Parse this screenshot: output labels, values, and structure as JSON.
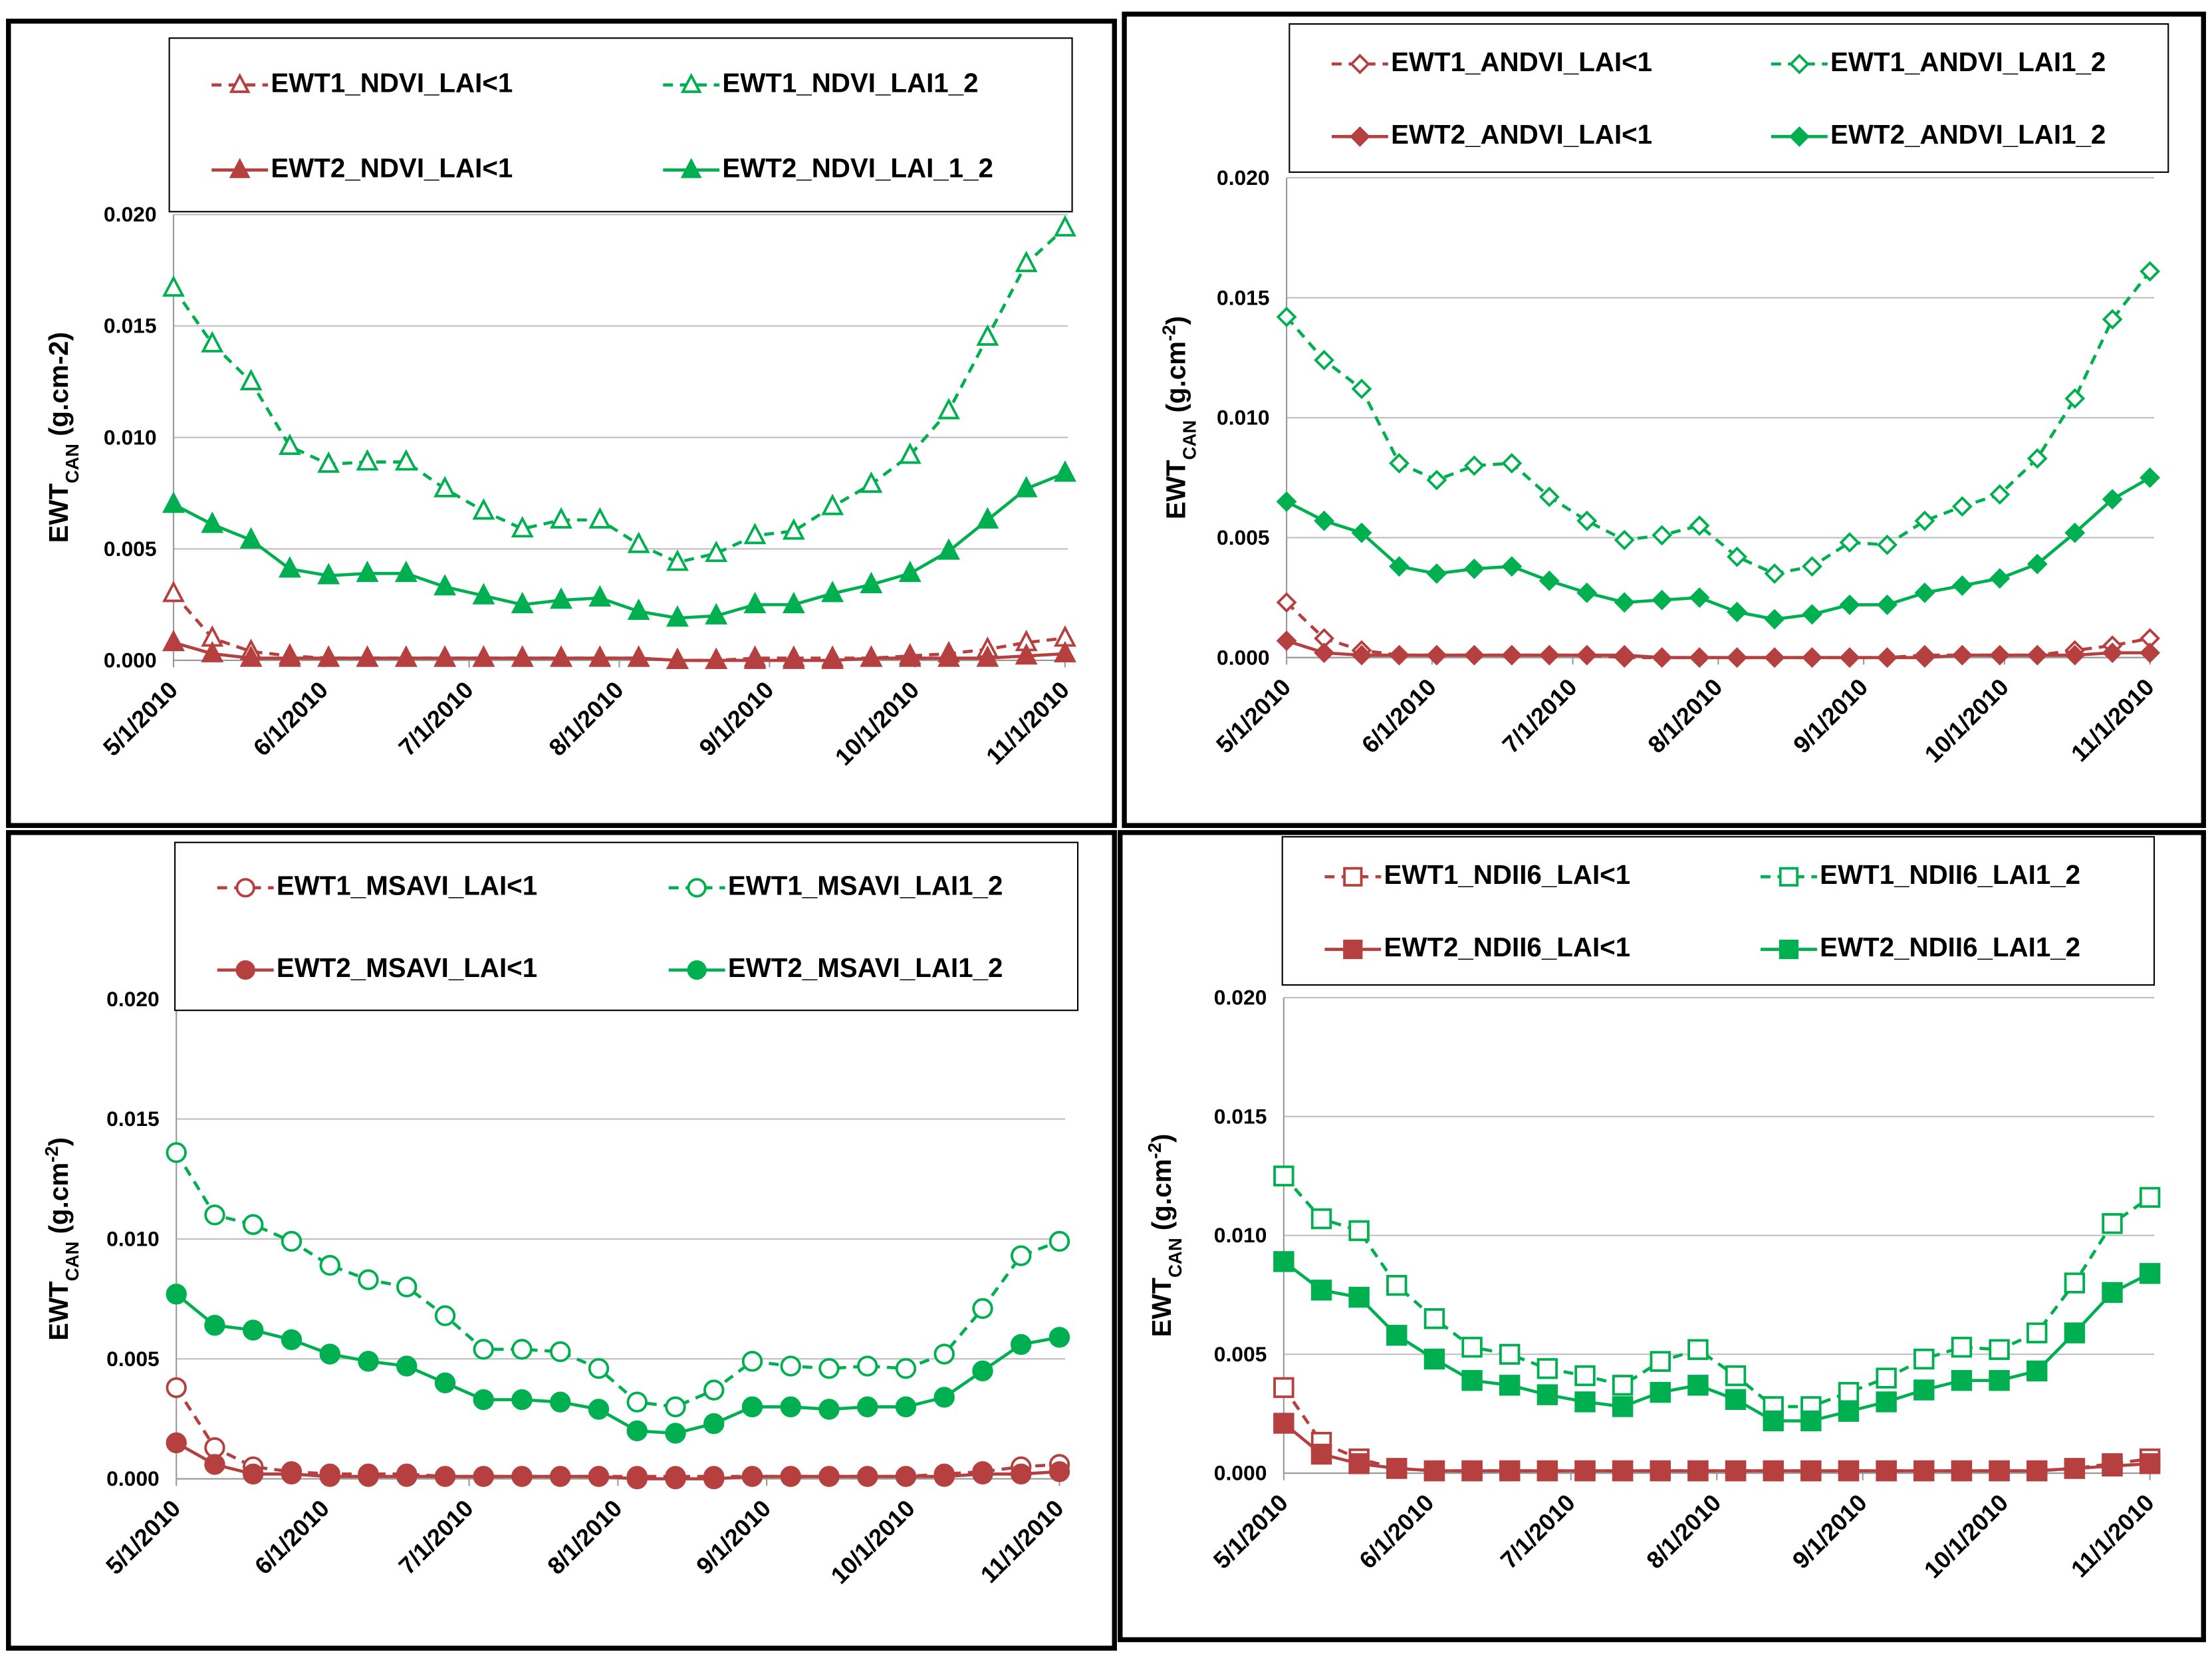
{
  "chart_data": [
    {
      "type": "line",
      "ylabel_parts": [
        "EWT",
        "CAN",
        " (g.cm-2)"
      ],
      "x": [
        "5/1/2010",
        "5/9/2010",
        "5/17/2010",
        "5/25/2010",
        "6/2/2010",
        "6/10/2010",
        "6/18/2010",
        "6/26/2010",
        "7/4/2010",
        "7/12/2010",
        "7/20/2010",
        "7/28/2010",
        "8/5/2010",
        "8/13/2010",
        "8/21/2010",
        "8/29/2010",
        "9/6/2010",
        "9/14/2010",
        "9/22/2010",
        "9/30/2010",
        "10/8/2010",
        "10/16/2010",
        "10/24/2010",
        "11/1/2010"
      ],
      "xlim": [
        "5/1/2010",
        "11/1/2010"
      ],
      "xticks": [
        "5/1/2010",
        "6/1/2010",
        "7/1/2010",
        "8/1/2010",
        "9/1/2010",
        "10/1/2010",
        "11/1/2010"
      ],
      "ylim": [
        0,
        0.02
      ],
      "yticks": [
        {
          "value": 0,
          "label": "0.000"
        },
        {
          "value": 0.005,
          "label": "0.005"
        },
        {
          "value": 0.01,
          "label": "0.010"
        },
        {
          "value": 0.015,
          "label": "0.015"
        },
        {
          "value": 0.02,
          "label": "0.020"
        }
      ],
      "grid": true,
      "series": [
        {
          "name": "EWT1_NDVI_LAI<1",
          "color": "#b5403f",
          "marker": "triangle",
          "filled": false,
          "dashed": true,
          "values": [
            0.003,
            0.001,
            0.0004,
            0.0002,
            0.0001,
            0.0001,
            0.0001,
            0.0001,
            0.0001,
            0.0001,
            0.0001,
            0.0001,
            0.0001,
            0,
            0,
            0.0001,
            0.0001,
            0.0001,
            0.0001,
            0.0002,
            0.0003,
            0.0005,
            0.0008,
            0.001
          ]
        },
        {
          "name": "EWT1_NDVI_LAI1_2",
          "color": "#00b050",
          "marker": "triangle",
          "filled": false,
          "dashed": true,
          "values": [
            0.0167,
            0.0142,
            0.0125,
            0.0096,
            0.0088,
            0.0089,
            0.0089,
            0.0077,
            0.0067,
            0.0059,
            0.0063,
            0.0063,
            0.0052,
            0.0044,
            0.0048,
            0.0056,
            0.0058,
            0.0069,
            0.0079,
            0.0092,
            0.0112,
            0.0145,
            0.0178,
            0.0194
          ]
        },
        {
          "name": "EWT2_NDVI_LAI<1",
          "color": "#b5403f",
          "marker": "triangle",
          "filled": true,
          "dashed": false,
          "values": [
            0.0008,
            0.0003,
            0.0001,
            0.0001,
            0.0001,
            0.0001,
            0.0001,
            0.0001,
            0.0001,
            0.0001,
            0.0001,
            0.0001,
            0.0001,
            0,
            0,
            0,
            0,
            0,
            0.0001,
            0.0001,
            0.0001,
            0.0001,
            0.0002,
            0.0003
          ]
        },
        {
          "name": "EWT2_NDVI_LAI_1_2",
          "color": "#00b050",
          "marker": "triangle",
          "filled": true,
          "dashed": false,
          "values": [
            0.007,
            0.0061,
            0.0054,
            0.0041,
            0.0038,
            0.0039,
            0.0039,
            0.0033,
            0.0029,
            0.0025,
            0.0027,
            0.0028,
            0.0022,
            0.0019,
            0.002,
            0.0025,
            0.0025,
            0.003,
            0.0034,
            0.0039,
            0.0049,
            0.0063,
            0.0077,
            0.0084
          ]
        }
      ]
    },
    {
      "type": "line",
      "ylabel_parts": [
        "EWT",
        "CAN",
        " (g.cm",
        "-2",
        ")"
      ],
      "x": [
        "5/1/2010",
        "5/9/2010",
        "5/17/2010",
        "5/25/2010",
        "6/2/2010",
        "6/10/2010",
        "6/18/2010",
        "6/26/2010",
        "7/4/2010",
        "7/12/2010",
        "7/20/2010",
        "7/28/2010",
        "8/5/2010",
        "8/13/2010",
        "8/21/2010",
        "8/29/2010",
        "9/6/2010",
        "9/14/2010",
        "9/22/2010",
        "9/30/2010",
        "10/8/2010",
        "10/16/2010",
        "10/24/2010",
        "11/1/2010"
      ],
      "xlim": [
        "5/1/2010",
        "11/1/2010"
      ],
      "xticks": [
        "5/1/2010",
        "6/1/2010",
        "7/1/2010",
        "8/1/2010",
        "9/1/2010",
        "10/1/2010",
        "11/1/2010"
      ],
      "ylim": [
        0,
        0.02
      ],
      "yticks": [
        {
          "value": 0,
          "label": "0.000"
        },
        {
          "value": 0.005,
          "label": "0.005"
        },
        {
          "value": 0.01,
          "label": "0.010"
        },
        {
          "value": 0.015,
          "label": "0.015"
        },
        {
          "value": 0.02,
          "label": "0.020"
        }
      ],
      "grid": true,
      "series": [
        {
          "name": "EWT1_ANDVI_LAI<1",
          "color": "#b5403f",
          "marker": "diamond",
          "filled": false,
          "dashed": true,
          "values": [
            0.0023,
            0.0008,
            0.0003,
            0.0001,
            0.0001,
            0.0001,
            0.0001,
            0.0001,
            0.0001,
            0,
            0,
            0,
            0,
            0,
            0,
            0,
            0,
            0.0001,
            0.0001,
            0.0001,
            0.0001,
            0.0003,
            0.0005,
            0.0008
          ]
        },
        {
          "name": "EWT1_ANDVI_LAI1_2",
          "color": "#00b050",
          "marker": "diamond",
          "filled": false,
          "dashed": true,
          "values": [
            0.0142,
            0.0124,
            0.0112,
            0.0081,
            0.0074,
            0.008,
            0.0081,
            0.0067,
            0.0057,
            0.0049,
            0.0051,
            0.0055,
            0.0042,
            0.0035,
            0.0038,
            0.0048,
            0.0047,
            0.0057,
            0.0063,
            0.0068,
            0.0083,
            0.0108,
            0.0141,
            0.0161
          ]
        },
        {
          "name": "EWT2_ANDVI_LAI<1",
          "color": "#b5403f",
          "marker": "diamond",
          "filled": true,
          "dashed": false,
          "values": [
            0.0007,
            0.0002,
            0.0001,
            0.0001,
            0.0001,
            0.0001,
            0.0001,
            0.0001,
            0.0001,
            0.0001,
            0,
            0,
            0,
            0,
            0,
            0,
            0,
            0,
            0.0001,
            0.0001,
            0.0001,
            0.0001,
            0.0002,
            0.0002
          ]
        },
        {
          "name": "EWT2_ANDVI_LAI1_2",
          "color": "#00b050",
          "marker": "diamond",
          "filled": true,
          "dashed": false,
          "values": [
            0.0065,
            0.0057,
            0.0052,
            0.0038,
            0.0035,
            0.0037,
            0.0038,
            0.0032,
            0.0027,
            0.0023,
            0.0024,
            0.0025,
            0.0019,
            0.0016,
            0.0018,
            0.0022,
            0.0022,
            0.0027,
            0.003,
            0.0033,
            0.0039,
            0.0052,
            0.0066,
            0.0075
          ]
        }
      ]
    },
    {
      "type": "line",
      "ylabel_parts": [
        "EWT",
        "CAN",
        " (g.cm",
        "-2",
        ")"
      ],
      "x": [
        "5/1/2010",
        "5/9/2010",
        "5/17/2010",
        "5/25/2010",
        "6/2/2010",
        "6/10/2010",
        "6/18/2010",
        "6/26/2010",
        "7/4/2010",
        "7/12/2010",
        "7/20/2010",
        "7/28/2010",
        "8/5/2010",
        "8/13/2010",
        "8/21/2010",
        "8/29/2010",
        "9/6/2010",
        "9/14/2010",
        "9/22/2010",
        "9/30/2010",
        "10/8/2010",
        "10/16/2010",
        "10/24/2010",
        "11/1/2010"
      ],
      "xlim": [
        "5/1/2010",
        "11/1/2010"
      ],
      "xticks": [
        "5/1/2010",
        "6/1/2010",
        "7/1/2010",
        "8/1/2010",
        "9/1/2010",
        "10/1/2010",
        "11/1/2010"
      ],
      "ylim": [
        0,
        0.02
      ],
      "yticks": [
        {
          "value": 0,
          "label": "0.000"
        },
        {
          "value": 0.005,
          "label": "0.005"
        },
        {
          "value": 0.01,
          "label": "0.010"
        },
        {
          "value": 0.015,
          "label": "0.015"
        },
        {
          "value": 0.02,
          "label": "0.020"
        }
      ],
      "grid": true,
      "series": [
        {
          "name": "EWT1_MSAVI_LAI<1",
          "color": "#b5403f",
          "marker": "circle",
          "filled": false,
          "dashed": true,
          "values": [
            0.0038,
            0.0013,
            0.0005,
            0.0003,
            0.0002,
            0.0002,
            0.0002,
            0.0001,
            0.0001,
            0.0001,
            0.0001,
            0.0001,
            0.0001,
            0.0001,
            0.0001,
            0.0001,
            0.0001,
            0.0001,
            0.0001,
            0.0001,
            0.0002,
            0.0003,
            0.0005,
            0.0006
          ]
        },
        {
          "name": "EWT1_MSAVI_LAI1_2",
          "color": "#00b050",
          "marker": "circle",
          "filled": false,
          "dashed": true,
          "values": [
            0.0136,
            0.011,
            0.0106,
            0.0099,
            0.0089,
            0.0083,
            0.008,
            0.0068,
            0.0054,
            0.0054,
            0.0053,
            0.0046,
            0.0032,
            0.003,
            0.0037,
            0.0049,
            0.0047,
            0.0046,
            0.0047,
            0.0046,
            0.0052,
            0.0071,
            0.0093,
            0.0099
          ]
        },
        {
          "name": "EWT2_MSAVI_LAI<1",
          "color": "#b5403f",
          "marker": "circle",
          "filled": true,
          "dashed": false,
          "values": [
            0.0015,
            0.0006,
            0.0002,
            0.0002,
            0.0001,
            0.0001,
            0.0001,
            0.0001,
            0.0001,
            0.0001,
            0.0001,
            0.0001,
            0,
            0,
            0,
            0.0001,
            0.0001,
            0.0001,
            0.0001,
            0.0001,
            0.0001,
            0.0002,
            0.0002,
            0.0003
          ]
        },
        {
          "name": "EWT2_MSAVI_LAI1_2",
          "color": "#00b050",
          "marker": "circle",
          "filled": true,
          "dashed": false,
          "values": [
            0.0077,
            0.0064,
            0.0062,
            0.0058,
            0.0052,
            0.0049,
            0.0047,
            0.004,
            0.0033,
            0.0033,
            0.0032,
            0.0029,
            0.002,
            0.0019,
            0.0023,
            0.003,
            0.003,
            0.0029,
            0.003,
            0.003,
            0.0034,
            0.0045,
            0.0056,
            0.0059
          ]
        }
      ]
    },
    {
      "type": "line",
      "ylabel_parts": [
        "EWT",
        "CAN",
        " (g.cm",
        "-2",
        ")"
      ],
      "x": [
        "5/1/2010",
        "5/9/2010",
        "5/17/2010",
        "5/25/2010",
        "6/2/2010",
        "6/10/2010",
        "6/18/2010",
        "6/26/2010",
        "7/4/2010",
        "7/12/2010",
        "7/20/2010",
        "7/28/2010",
        "8/5/2010",
        "8/13/2010",
        "8/21/2010",
        "8/29/2010",
        "9/6/2010",
        "9/14/2010",
        "9/22/2010",
        "9/30/2010",
        "10/8/2010",
        "10/16/2010",
        "10/24/2010",
        "11/1/2010"
      ],
      "xlim": [
        "5/1/2010",
        "11/1/2010"
      ],
      "xticks": [
        "5/1/2010",
        "6/1/2010",
        "7/1/2010",
        "8/1/2010",
        "9/1/2010",
        "10/1/2010",
        "11/1/2010"
      ],
      "ylim": [
        0,
        0.02
      ],
      "yticks": [
        {
          "value": 0,
          "label": "0.000"
        },
        {
          "value": 0.005,
          "label": "0.005"
        },
        {
          "value": 0.01,
          "label": "0.010"
        },
        {
          "value": 0.015,
          "label": "0.015"
        },
        {
          "value": 0.02,
          "label": "0.020"
        }
      ],
      "grid": true,
      "series": [
        {
          "name": "EWT1_NDII6_LAI<1",
          "color": "#b5403f",
          "marker": "square",
          "filled": false,
          "dashed": true,
          "values": [
            0.0036,
            0.0013,
            0.0006,
            0.0002,
            0.0001,
            0.0001,
            0.0001,
            0.0001,
            0.0001,
            0.0001,
            0.0001,
            0.0001,
            0.0001,
            0.0001,
            0.0001,
            0.0001,
            0.0001,
            0.0001,
            0.0001,
            0.0001,
            0.0001,
            0.0002,
            0.0004,
            0.0006
          ]
        },
        {
          "name": "EWT1_NDII6_LAI1_2",
          "color": "#00b050",
          "marker": "square",
          "filled": false,
          "dashed": true,
          "values": [
            0.0125,
            0.0107,
            0.0102,
            0.0079,
            0.0065,
            0.0053,
            0.005,
            0.0044,
            0.0041,
            0.0037,
            0.0047,
            0.0052,
            0.0041,
            0.0028,
            0.0028,
            0.0034,
            0.004,
            0.0048,
            0.0053,
            0.0052,
            0.0059,
            0.008,
            0.0105,
            0.0116
          ]
        },
        {
          "name": "EWT2_NDII6_LAI<1",
          "color": "#b5403f",
          "marker": "square",
          "filled": true,
          "dashed": false,
          "values": [
            0.0021,
            0.0008,
            0.0004,
            0.0002,
            0.0001,
            0.0001,
            0.0001,
            0.0001,
            0.0001,
            0.0001,
            0.0001,
            0.0001,
            0.0001,
            0.0001,
            0.0001,
            0.0001,
            0.0001,
            0.0001,
            0.0001,
            0.0001,
            0.0001,
            0.0002,
            0.0003,
            0.0004
          ]
        },
        {
          "name": "EWT2_NDII6_LAI1_2",
          "color": "#00b050",
          "marker": "square",
          "filled": true,
          "dashed": false,
          "values": [
            0.0089,
            0.0077,
            0.0074,
            0.0058,
            0.0048,
            0.0039,
            0.0037,
            0.0033,
            0.003,
            0.0028,
            0.0034,
            0.0037,
            0.0031,
            0.0022,
            0.0022,
            0.0026,
            0.003,
            0.0035,
            0.0039,
            0.0039,
            0.0043,
            0.0059,
            0.0076,
            0.0084
          ]
        }
      ]
    }
  ]
}
